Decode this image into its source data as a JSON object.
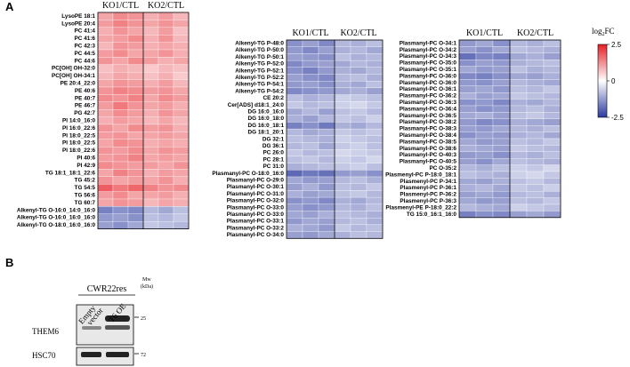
{
  "panel_labels": [
    "A",
    "B"
  ],
  "chart_data": [
    {
      "type": "heatmap",
      "column_groups": [
        "KO1/CTL",
        "KO2/CTL"
      ],
      "rows": [
        "LysoPE 18:1",
        "LysoPE 20:4",
        "PC 41:4",
        "PC 41:6",
        "PC 42:3",
        "PC 44:5",
        "PC 44:6",
        "PC[OH] OH-32:0",
        "PC[OH] OH-34:1",
        "PE 20:4_22:0",
        "PE 40:6",
        "PE 40:7",
        "PE 46:7",
        "PG 42:7",
        "PI 14:0_16:0",
        "PI 16:0_22:6",
        "PI 18:0_22:5",
        "PI 18:0_22:5",
        "PI 18:0_22:6",
        "PI 40:6",
        "PI 42:9",
        "TG 18:1_18:1_22:6",
        "TG 45:2",
        "TG 54:5",
        "TG 56:6",
        "TG 60:7",
        "Alkenyl-TG O-16:0_14:0_16:0",
        "Alkenyl-TG O-16:0_16:0_16:0",
        "Alkenyl-TG O-18:0_16:0_16:0"
      ],
      "values": [
        [
          1.0,
          1.3,
          1.2,
          0.9,
          1.1,
          0.8
        ],
        [
          1.1,
          1.4,
          1.2,
          1.0,
          1.2,
          1.0
        ],
        [
          0.9,
          1.2,
          1.0,
          0.8,
          1.1,
          0.7
        ],
        [
          1.0,
          1.1,
          1.3,
          0.9,
          1.2,
          0.8
        ],
        [
          0.8,
          1.2,
          1.1,
          0.9,
          1.0,
          0.9
        ],
        [
          1.1,
          1.3,
          1.0,
          1.0,
          1.2,
          0.9
        ],
        [
          1.2,
          1.0,
          1.3,
          1.1,
          0.9,
          1.0
        ],
        [
          0.7,
          0.9,
          0.8,
          0.6,
          0.8,
          0.7
        ],
        [
          0.8,
          1.0,
          0.9,
          0.7,
          0.9,
          0.6
        ],
        [
          1.0,
          1.2,
          1.1,
          0.9,
          1.1,
          0.8
        ],
        [
          1.2,
          1.4,
          1.3,
          1.1,
          1.2,
          1.0
        ],
        [
          1.3,
          1.2,
          1.4,
          1.0,
          1.3,
          1.1
        ],
        [
          1.1,
          1.5,
          1.2,
          1.0,
          1.1,
          0.9
        ],
        [
          1.0,
          1.3,
          1.1,
          0.9,
          1.2,
          1.0
        ],
        [
          0.9,
          1.1,
          1.0,
          0.8,
          1.0,
          0.8
        ],
        [
          1.2,
          1.0,
          1.3,
          1.1,
          1.2,
          0.9
        ],
        [
          1.1,
          1.2,
          1.0,
          1.0,
          1.1,
          1.0
        ],
        [
          1.0,
          1.3,
          1.2,
          0.9,
          1.0,
          0.9
        ],
        [
          1.2,
          1.1,
          1.3,
          1.0,
          1.2,
          1.1
        ],
        [
          1.1,
          1.2,
          1.4,
          1.0,
          1.1,
          1.0
        ],
        [
          1.3,
          1.2,
          1.1,
          1.1,
          1.0,
          1.2
        ],
        [
          1.0,
          1.4,
          1.2,
          0.9,
          1.1,
          1.0
        ],
        [
          1.2,
          1.0,
          1.1,
          1.0,
          1.2,
          0.9
        ],
        [
          1.8,
          1.5,
          1.7,
          1.4,
          1.2,
          1.3
        ],
        [
          1.1,
          1.3,
          1.0,
          1.0,
          1.1,
          0.9
        ],
        [
          1.0,
          1.2,
          1.1,
          0.8,
          1.0,
          0.9
        ],
        [
          -1.6,
          -1.4,
          -1.5,
          -0.9,
          -1.1,
          -0.8
        ],
        [
          -1.3,
          -1.2,
          -1.4,
          -0.8,
          -0.9,
          -0.7
        ],
        [
          -1.2,
          -1.4,
          -1.1,
          -0.7,
          -0.8,
          -0.9
        ]
      ]
    },
    {
      "type": "heatmap",
      "column_groups": [
        "KO1/CTL",
        "KO2/CTL"
      ],
      "rows": [
        "Alkenyl-TG P-48:0",
        "Alkenyl-TG P-50:0",
        "Alkenyl-TG P-50:1",
        "Alkenyl-TG P-52:0",
        "Alkenyl-TG P-52:1",
        "Alkenyl-TG P-52:2",
        "Alkenyl-TG P-54:1",
        "Alkenyl-TG P-54:2",
        "CE 20:2",
        "Cer[ADS] d18:1_24:0",
        "DG 16:0_16:0",
        "DG 16:0_18:0",
        "DG 16:0_18:1",
        "DG 18:1_20:1",
        "DG 32:1",
        "DG 36:1",
        "PC 26:0",
        "PC 28:1",
        "PC 31:0",
        "Plasmanyl-PC O-18:0_16:0",
        "Plasmanyl-PC O-29:0",
        "Plasmanyl-PC O-30:1",
        "Plasmanyl-PC O-31:0",
        "Plasmanyl-PC O-32:0",
        "Plasmanyl-PC O-33:0",
        "Plasmanyl-PC O-33:0",
        "Plasmanyl-PC O-33:1",
        "Plasmanyl-PC O-33:2",
        "Plasmanyl-PC O-34:0"
      ],
      "values": [
        [
          -1.4,
          -1.2,
          -1.5,
          -0.9,
          -1.0,
          -0.8
        ],
        [
          -1.3,
          -1.5,
          -1.2,
          -1.0,
          -0.9,
          -1.1
        ],
        [
          -1.2,
          -1.3,
          -1.4,
          -0.8,
          -1.0,
          -0.9
        ],
        [
          -1.5,
          -1.3,
          -1.2,
          -1.1,
          -0.9,
          -1.0
        ],
        [
          -1.4,
          -1.6,
          -1.3,
          -1.0,
          -1.1,
          -0.9
        ],
        [
          -1.2,
          -1.4,
          -1.5,
          -0.9,
          -0.8,
          -1.0
        ],
        [
          -1.3,
          -1.2,
          -1.4,
          -1.0,
          -1.1,
          -0.8
        ],
        [
          -1.5,
          -1.4,
          -1.3,
          -1.1,
          -1.0,
          -1.2
        ],
        [
          -0.8,
          -1.0,
          -0.9,
          -0.6,
          -0.7,
          -0.8
        ],
        [
          -0.7,
          -0.9,
          -0.8,
          -0.6,
          -0.5,
          -0.7
        ],
        [
          -1.1,
          -0.9,
          -1.2,
          -0.8,
          -0.7,
          -0.9
        ],
        [
          -1.0,
          -1.2,
          -0.9,
          -0.7,
          -0.8,
          -0.6
        ],
        [
          -1.6,
          -1.4,
          -1.7,
          -1.0,
          -1.1,
          -0.9
        ],
        [
          -0.9,
          -1.1,
          -1.0,
          -0.7,
          -0.8,
          -0.7
        ],
        [
          -0.8,
          -0.9,
          -1.0,
          -0.6,
          -0.7,
          -0.8
        ],
        [
          -0.9,
          -0.8,
          -1.1,
          -0.7,
          -0.6,
          -0.8
        ],
        [
          -0.7,
          -0.9,
          -0.8,
          -0.5,
          -0.6,
          -0.7
        ],
        [
          -0.8,
          -0.7,
          -0.9,
          -0.6,
          -0.7,
          -0.5
        ],
        [
          -1.0,
          -0.9,
          -0.8,
          -0.7,
          -0.6,
          -0.8
        ],
        [
          -1.9,
          -1.7,
          -1.8,
          -1.3,
          -1.2,
          -1.4
        ],
        [
          -1.1,
          -1.3,
          -1.2,
          -0.9,
          -0.8,
          -1.0
        ],
        [
          -1.2,
          -1.0,
          -1.3,
          -0.8,
          -0.9,
          -0.7
        ],
        [
          -1.0,
          -1.2,
          -1.1,
          -0.8,
          -0.7,
          -0.9
        ],
        [
          -1.4,
          -1.3,
          -1.5,
          -1.0,
          -1.1,
          -0.9
        ],
        [
          -1.2,
          -1.4,
          -1.3,
          -0.9,
          -1.0,
          -0.8
        ],
        [
          -1.1,
          -1.2,
          -1.0,
          -0.8,
          -0.9,
          -1.0
        ],
        [
          -1.3,
          -1.1,
          -1.2,
          -0.9,
          -0.8,
          -1.0
        ],
        [
          -1.0,
          -1.1,
          -1.3,
          -0.7,
          -0.9,
          -0.8
        ],
        [
          -1.2,
          -1.3,
          -1.1,
          -1.0,
          -0.8,
          -0.9
        ]
      ]
    },
    {
      "type": "heatmap",
      "column_groups": [
        "KO1/CTL",
        "KO2/CTL"
      ],
      "rows": [
        "Plasmanyl-PC O-34:1",
        "Plasmanyl-PC O-34:2",
        "Plasmanyl-PC O-34:3",
        "Plasmanyl-PC O-35:0",
        "Plasmanyl-PC O-35:1",
        "Plasmanyl-PC O-36:0",
        "Plasmanyl-PC O-36:0",
        "Plasmanyl-PC O-36:1",
        "Plasmanyl-PC O-36:2",
        "Plasmanyl-PC O-36:3",
        "Plasmanyl-PC O-36:4",
        "Plasmanyl-PC O-36:5",
        "Plasmanyl-PC O-38:2",
        "Plasmanyl-PC O-38:3",
        "Plasmanyl-PC O-38:4",
        "Plasmanyl-PC O-38:5",
        "Plasmanyl-PC O-38:6",
        "Plasmanyl-PC O-40:3",
        "Plasmanyl-PC O-40:5",
        "PC O-35:2",
        "Plasmenyl-PC P-18:0_18:1",
        "Plasmenyl-PC P-34:1",
        "Plasmenyl-PC P-36:1",
        "Plasmenyl-PC P-36:2",
        "Plasmenyl-PC P-36:3",
        "Plasmenyl-PE P-18:0_22:2",
        "TG 15:0_16:1_16:0"
      ],
      "values": [
        [
          -1.3,
          -1.1,
          -1.4,
          -0.9,
          -1.0,
          -0.8
        ],
        [
          -1.2,
          -1.4,
          -1.1,
          -0.8,
          -0.9,
          -1.0
        ],
        [
          -1.8,
          -1.5,
          -1.6,
          -1.1,
          -1.0,
          -1.2
        ],
        [
          -1.4,
          -1.2,
          -1.3,
          -1.0,
          -0.9,
          -0.8
        ],
        [
          -1.1,
          -1.3,
          -1.2,
          -0.8,
          -1.0,
          -0.9
        ],
        [
          -1.5,
          -1.6,
          -1.4,
          -1.1,
          -1.2,
          -1.0
        ],
        [
          -1.3,
          -1.4,
          -1.2,
          -0.9,
          -1.0,
          -1.1
        ],
        [
          -1.2,
          -1.1,
          -1.3,
          -0.8,
          -0.9,
          -0.7
        ],
        [
          -1.0,
          -1.2,
          -1.1,
          -0.7,
          -0.8,
          -0.9
        ],
        [
          -1.4,
          -1.3,
          -1.5,
          -1.0,
          -1.1,
          -0.9
        ],
        [
          -1.2,
          -1.4,
          -1.3,
          -0.9,
          -0.8,
          -1.0
        ],
        [
          -1.1,
          -1.0,
          -1.2,
          -0.8,
          -0.7,
          -0.9
        ],
        [
          -1.3,
          -1.5,
          -1.4,
          -1.0,
          -1.1,
          -1.2
        ],
        [
          -1.2,
          -1.3,
          -1.1,
          -0.9,
          -1.0,
          -0.8
        ],
        [
          -1.4,
          -1.2,
          -1.3,
          -1.0,
          -0.9,
          -1.1
        ],
        [
          -1.1,
          -1.3,
          -1.2,
          -0.8,
          -0.9,
          -0.7
        ],
        [
          -1.0,
          -1.1,
          -1.2,
          -0.7,
          -0.8,
          -0.9
        ],
        [
          -1.3,
          -1.2,
          -1.4,
          -0.9,
          -1.0,
          -0.8
        ],
        [
          -1.2,
          -1.4,
          -1.1,
          -0.8,
          -0.9,
          -1.0
        ],
        [
          -0.9,
          -1.0,
          -0.8,
          -0.6,
          -0.7,
          -0.5
        ],
        [
          -0.8,
          -0.9,
          -1.0,
          -0.6,
          -0.5,
          -0.7
        ],
        [
          -1.1,
          -1.2,
          -1.0,
          -0.8,
          -0.7,
          -0.9
        ],
        [
          -1.0,
          -0.9,
          -1.1,
          -0.7,
          -0.8,
          -0.6
        ],
        [
          -1.2,
          -1.1,
          -1.3,
          -0.9,
          -0.8,
          -1.0
        ],
        [
          -1.1,
          -1.3,
          -1.2,
          -0.8,
          -0.9,
          -0.7
        ],
        [
          -0.9,
          -1.0,
          -1.1,
          -0.6,
          -0.7,
          -0.8
        ],
        [
          -1.6,
          -1.4,
          -1.5,
          -1.2,
          -1.1,
          -1.3
        ]
      ]
    }
  ],
  "colorbar": {
    "title": [
      "log",
      "2",
      "FC"
    ],
    "zlim": [
      -2.5,
      2.5
    ],
    "colors": [
      "#2b3a9e",
      "#ffffff",
      "#e41f26"
    ],
    "ticks": [
      2.5,
      0,
      -2.5
    ]
  },
  "blot": {
    "cell_line": "CWR22res",
    "lanes": [
      [
        "Empty",
        "vector"
      ],
      [
        "T6 OE"
      ]
    ],
    "mw_title": [
      "Mw",
      "(kDa)"
    ],
    "proteins": [
      "THEM6",
      "HSC70"
    ],
    "markers": [
      25,
      72
    ]
  }
}
